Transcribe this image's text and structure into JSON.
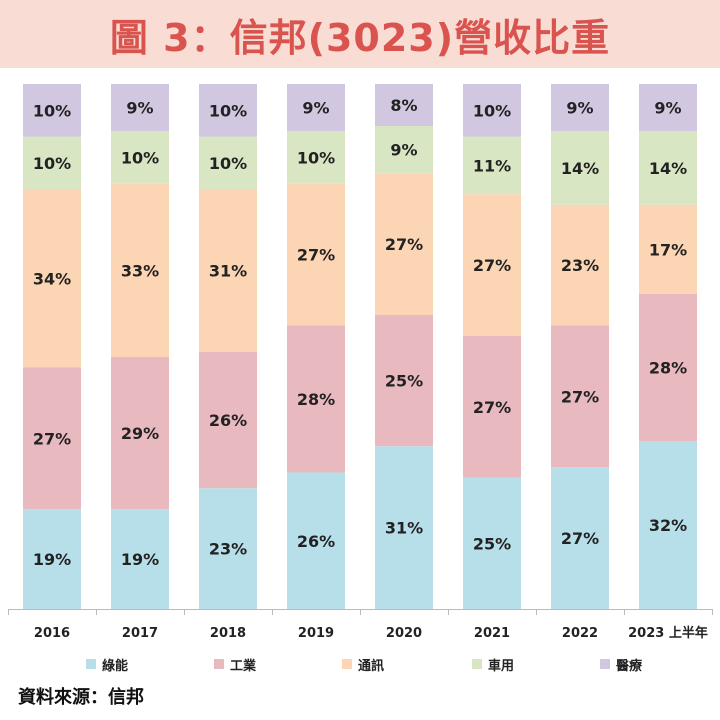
{
  "chart_data": {
    "type": "bar",
    "stacked": true,
    "normalized": true,
    "title": "圖 3：信邦(3023)營收比重",
    "categories": [
      "2016",
      "2017",
      "2018",
      "2019",
      "2020",
      "2021",
      "2022",
      "2023 上半年"
    ],
    "series": [
      {
        "name": "綠能",
        "color": "#b7dfea",
        "values": [
          19,
          19,
          23,
          26,
          31,
          25,
          27,
          32
        ]
      },
      {
        "name": "工業",
        "color": "#e8b9bf",
        "values": [
          27,
          29,
          26,
          28,
          25,
          27,
          27,
          28
        ]
      },
      {
        "name": "通訊",
        "color": "#fcd5b5",
        "values": [
          34,
          33,
          31,
          27,
          27,
          27,
          23,
          17
        ]
      },
      {
        "name": "車用",
        "color": "#d8e6c4",
        "values": [
          10,
          10,
          10,
          10,
          9,
          11,
          14,
          14
        ]
      },
      {
        "name": "醫療",
        "color": "#d2c7e0",
        "values": [
          10,
          9,
          10,
          9,
          8,
          10,
          9,
          9
        ]
      }
    ],
    "value_suffix": "%",
    "ylim": [
      0,
      100
    ],
    "legend_position": "bottom",
    "grid": false
  },
  "colors": {
    "title_text": "#d9534f",
    "title_background": "#f9dcd4",
    "label_text": "#222222",
    "axis_line": "#bbbbbb"
  },
  "source": "資料來源：信邦"
}
